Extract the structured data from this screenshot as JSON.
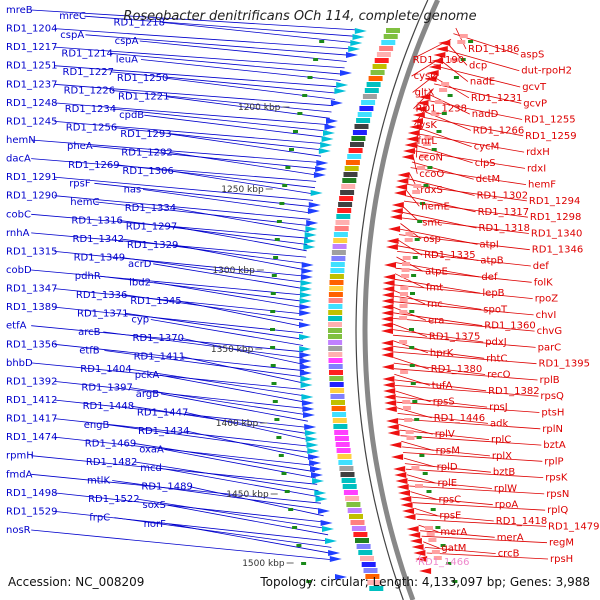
{
  "title": "Roseobacter denitrificans OCh 114, complete genome",
  "accession": "Accession: NC_008209",
  "summary": "Topology: circular; Length: 4,133,097 bp; Genes: 3,988",
  "colors": {
    "left_labels": "#0000cc",
    "right_labels": "#dd0000",
    "highlight_label": "#ee88cc",
    "backbone": "#888888",
    "tick_label": "#333333"
  },
  "ticks": [
    "1200 kbp",
    "1250 kbp",
    "1300 kbp",
    "1350 kbp",
    "1400 kbp",
    "1450 kbp",
    "1500 kbp"
  ],
  "left_genes": [
    "mreB",
    "mreC",
    "RD1_1218",
    "RD1_1204",
    "cspA",
    "cspA",
    "RD1_1217",
    "RD1_1214",
    "leuA",
    "RD1_1251",
    "RD1_1227",
    "RD1_1250",
    "RD1_1237",
    "RD1_1226",
    "RD1_1221",
    "RD1_1248",
    "RD1_1234",
    "cpdB",
    "RD1_1245",
    "RD1_1256",
    "RD1_1293",
    "hemN",
    "pheA",
    "RD1_1292",
    "dacA",
    "RD1_1269",
    "RD1_1306",
    "RD1_1291",
    "rpsF",
    "nas",
    "RD1_1290",
    "hemC",
    "RD1_1334",
    "cobC",
    "RD1_1316",
    "RD1_1297",
    "rnhA",
    "RD1_1342",
    "RD1_1329",
    "RD1_1315",
    "RD1_1349",
    "acrD",
    "cobD",
    "pdhR",
    "ibd2",
    "RD1_1347",
    "RD1_1336",
    "RD1_1345",
    "RD1_1389",
    "RD1_1371",
    "cyp",
    "etfA",
    "arcB",
    "RD1_1370",
    "RD1_1356",
    "etfB",
    "RD1_1411",
    "bhbD",
    "RD1_1404",
    "pckA",
    "RD1_1392",
    "RD1_1397",
    "argB",
    "RD1_1412",
    "RD1_1448",
    "RD1_1447",
    "RD1_1417",
    "engB",
    "RD1_1434",
    "RD1_1474",
    "RD1_1469",
    "oxaA",
    "rpmH",
    "RD1_1482",
    "mcd",
    "fmdA",
    "mtlK",
    "RD1_1489",
    "RD1_1498",
    "RD1_1522",
    "soxS",
    "RD1_1529",
    "frpC",
    "norF",
    "nosR"
  ],
  "right_genes": [
    "RD1_1186",
    "aspS",
    "RD1_1190",
    "dcp",
    "dut-rpoH2",
    "cysQ",
    "nadE",
    "gcvT",
    "gltX",
    "RD1_1231",
    "gcvP",
    "RD1_1238",
    "nadD",
    "RD1_1255",
    "lysK",
    "RD1_1266",
    "RD1_1259",
    "fnrL",
    "cycM",
    "rdxH",
    "ccoN",
    "clpS",
    "rdxI",
    "ccoO",
    "dctM",
    "hemF",
    "rdxS",
    "RD1_1302",
    "RD1_1294",
    "hemE",
    "RD1_1317",
    "RD1_1298",
    "smc",
    "RD1_1318",
    "RD1_1340",
    "osp",
    "atpI",
    "RD1_1346",
    "RD1_1335",
    "atpB",
    "def",
    "atpE",
    "def",
    "folK",
    "fmt",
    "lepB",
    "rpoZ",
    "rnc",
    "spoT",
    "chvI",
    "era",
    "RD1_1360",
    "chvG",
    "RD1_1375",
    "pdxJ",
    "parC",
    "hprK",
    "rhtC",
    "RD1_1395",
    "RD1_1380",
    "recO",
    "rplB",
    "tufA",
    "RD1_1382",
    "rpsQ",
    "rpsS",
    "rpsJ",
    "ptsH",
    "RD1_1446",
    "adk",
    "rplN",
    "rplV",
    "rplC",
    "bztA",
    "rpsM",
    "rplX",
    "rplP",
    "rplD",
    "bztB",
    "rpsK",
    "rplE",
    "rplW",
    "rpsN",
    "rpsC",
    "rpoA",
    "rplQ",
    "rpsE",
    "RD1_1418",
    "RD1_1479",
    "merA",
    "merA",
    "regM",
    "gatM",
    "crcB",
    "rpsH"
  ],
  "highlight_gene": "RD1_1466"
}
